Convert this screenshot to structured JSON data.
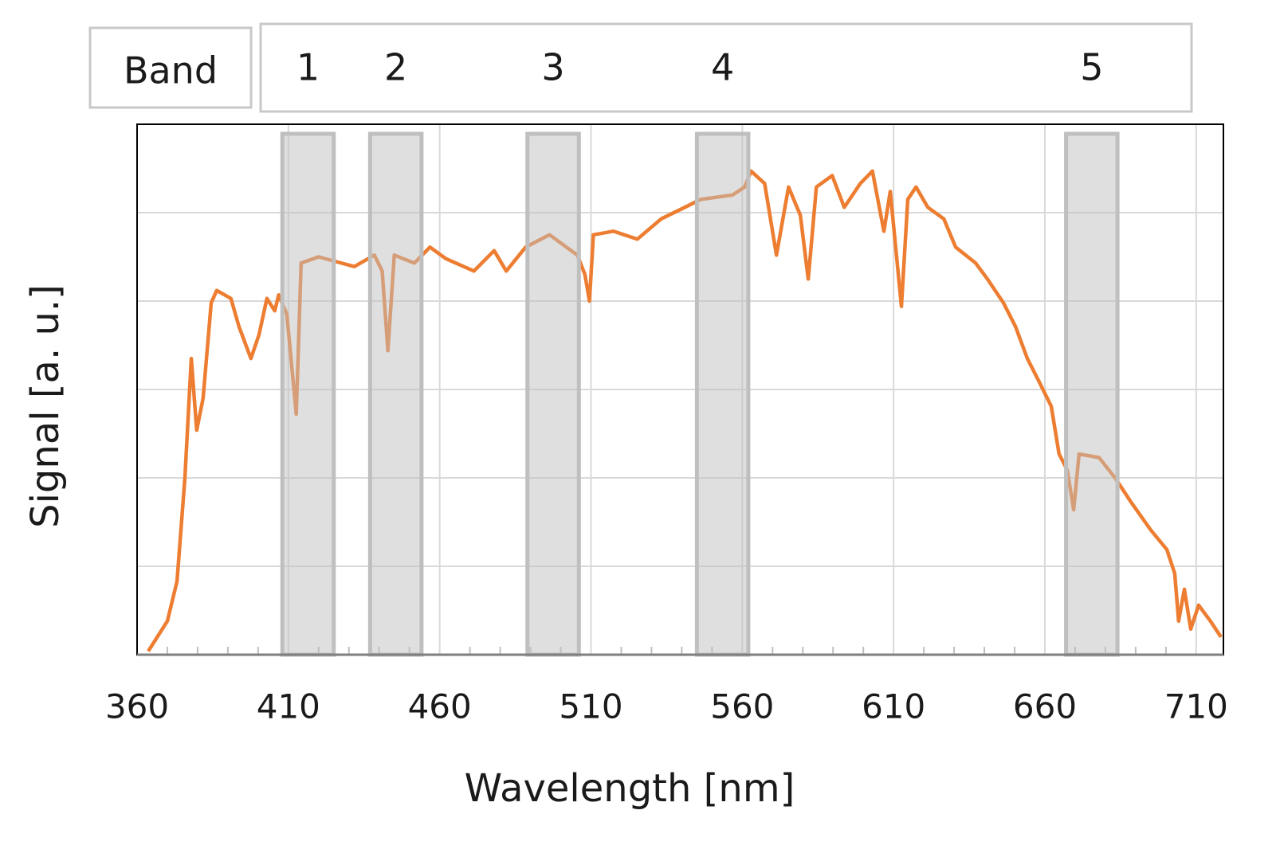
{
  "chart_data": {
    "type": "line",
    "xlabel": "Wavelength [nm]",
    "ylabel": "Signal [a. u.]",
    "band_header": "Band",
    "bands": [
      {
        "label": "1",
        "start": 408,
        "end": 425
      },
      {
        "label": "2",
        "start": 437,
        "end": 454
      },
      {
        "label": "3",
        "start": 489,
        "end": 506
      },
      {
        "label": "4",
        "start": 545,
        "end": 562
      },
      {
        "label": "5",
        "start": 667,
        "end": 684
      }
    ],
    "band_color": "#bfbfbf",
    "x": [
      363.7,
      370,
      373.2,
      375.8,
      377.9,
      379.7,
      381.8,
      384.5,
      386.3,
      391,
      393.7,
      397.6,
      400.3,
      402.9,
      405.5,
      406.8,
      409.5,
      412.6,
      414.2,
      420,
      425.3,
      431.8,
      438.4,
      441,
      442.9,
      445,
      451.6,
      456.8,
      462,
      471.3,
      478,
      482,
      488.4,
      496.3,
      505.5,
      508,
      509.5,
      510.8,
      517.4,
      525.3,
      533.2,
      541,
      546.3,
      556.8,
      560.8,
      562.9,
      567.4,
      571.3,
      575.3,
      579.2,
      581.8,
      584.5,
      589.7,
      593.7,
      599,
      603,
      606.8,
      608.9,
      612.6,
      614.7,
      617.4,
      621.3,
      626.6,
      630.5,
      637.1,
      641,
      646.3,
      650.3,
      654.2,
      658.2,
      662.1,
      664.7,
      667.4,
      669.5,
      671.3,
      677.9,
      683.2,
      688.4,
      695,
      700.3,
      702.9,
      704.2,
      706.1,
      708.2,
      710.8,
      714.7,
      718.2
    ],
    "values": [
      0.04,
      0.38,
      0.83,
      2.0,
      3.35,
      2.54,
      2.9,
      3.98,
      4.12,
      4.03,
      3.71,
      3.35,
      3.62,
      4.03,
      3.89,
      4.07,
      3.85,
      2.72,
      4.43,
      4.5,
      4.45,
      4.39,
      4.52,
      4.34,
      3.44,
      4.52,
      4.43,
      4.61,
      4.48,
      4.34,
      4.57,
      4.34,
      4.61,
      4.75,
      4.52,
      4.3,
      4.0,
      4.75,
      4.79,
      4.7,
      4.93,
      5.06,
      5.15,
      5.2,
      5.29,
      5.47,
      5.33,
      4.52,
      5.29,
      4.97,
      4.25,
      5.29,
      5.42,
      5.06,
      5.33,
      5.47,
      4.79,
      5.24,
      3.94,
      5.15,
      5.29,
      5.06,
      4.93,
      4.61,
      4.43,
      4.25,
      3.98,
      3.71,
      3.35,
      3.08,
      2.81,
      2.27,
      2.09,
      1.64,
      2.27,
      2.23,
      2.0,
      1.73,
      1.41,
      1.19,
      0.92,
      0.38,
      0.74,
      0.29,
      0.56,
      0.38,
      0.2
    ],
    "color": "#ed7d31",
    "xlim": [
      360,
      719
    ],
    "xticks": [
      360,
      410,
      460,
      510,
      560,
      610,
      660,
      710
    ],
    "xminor_ticks": [
      370,
      380,
      390,
      400,
      420,
      430,
      440,
      450,
      470,
      480,
      490,
      500,
      520,
      530,
      540,
      550,
      570,
      580,
      590,
      600,
      620,
      630,
      640,
      650,
      670,
      680,
      690,
      700
    ],
    "ylim": [
      0,
      6
    ],
    "yticks": [
      1,
      2,
      3,
      4,
      5
    ],
    "show_ytick_labels": false,
    "grid": true
  }
}
